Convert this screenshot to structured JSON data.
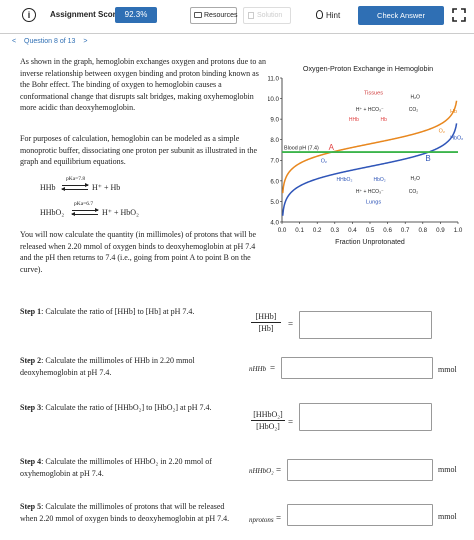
{
  "toolbar": {
    "score_label": "Assignment Score:",
    "score_value": "92.3%",
    "resources_label": "Resources",
    "solution_label": "Solution",
    "hint_label": "Hint",
    "check_label": "Check Answer"
  },
  "nav": {
    "prev": "<",
    "question": "Question 8 of 13",
    "next": ">"
  },
  "problem": {
    "intro": "As shown in the graph, hemoglobin exchanges oxygen and protons due to an inverse relationship between oxygen binding and proton binding known as the Bohr effect. The binding of oxygen to hemoglobin causes a conformational change that disrupts salt bridges, making oxyhemoglobin more acidic than deoxyhemoglobin.",
    "model": "For purposes of calculation, hemoglobin can be modeled as a simple monoprotic buffer, dissociating one proton per subunit as illustrated in the graph and equilibrium equations.",
    "eq1_left": "HHb",
    "eq1_k": "pKa=7.8",
    "eq1_right": "H⁺ + Hb",
    "eq2_left": "HHbO₂",
    "eq2_k": "pKa=6.7",
    "eq2_right": "H⁺ + HbO₂",
    "task": "You will now calculate the quantity (in millimoles) of protons that will be released when 2.20 mmol of oxygen binds to deoxyhemoglobin at pH 7.4 and the pH then returns to 7.4 (i.e., going from point A to point B on the curve)."
  },
  "steps": [
    {
      "label": "Step 1",
      "text": ": Calculate the ratio of [HHb] to [Hb] at pH 7.4.",
      "num": "[HHb]",
      "den": "[Hb]",
      "value": "",
      "unit": ""
    },
    {
      "label": "Step 2",
      "text": ": Calculate the millimoles of HHb in 2.20 mmol deoxyhemoglobin at pH 7.4.",
      "var": "nHHb",
      "value": "",
      "unit": "mmol"
    },
    {
      "label": "Step 3",
      "text": ": Calculate the ratio of [HHbO₂] to [HbO₂] at pH 7.4.",
      "num": "[HHbO₂]",
      "den": "[HbO₂]",
      "value": "",
      "unit": ""
    },
    {
      "label": "Step 4",
      "text": ": Calculate the millimoles of HHbO₂ in 2.20 mmol of oxyhemoglobin at pH 7.4.",
      "var": "nHHbO₂",
      "value": "",
      "unit": "mmol"
    },
    {
      "label": "Step 5",
      "text": ": Calculate the millimoles of protons that will be released when 2.20 mmol of oxygen binds to deoxyhemoglobin at pH 7.4.",
      "var": "nprotons",
      "value": "",
      "unit": "mmol"
    }
  ],
  "chart_data": {
    "type": "line",
    "title": "Oxygen-Proton Exchange in Hemoglobin",
    "xlabel": "Fraction Unprotonated",
    "ylabel": "pH",
    "xlim": [
      0.0,
      1.0
    ],
    "ylim": [
      4.0,
      11.0
    ],
    "x_ticks": [
      "0.0",
      "0.1",
      "0.2",
      "0.3",
      "0.4",
      "0.5",
      "0.6",
      "0.7",
      "0.8",
      "0.9",
      "1.0"
    ],
    "y_ticks": [
      "4.0",
      "5.0",
      "6.0",
      "7.0",
      "8.0",
      "9.0",
      "10.0",
      "11.0"
    ],
    "series": [
      {
        "name": "HHb / Hb",
        "color": "#e8871e",
        "pKa": 7.8
      },
      {
        "name": "HHbO₂ / HbO₂",
        "color": "#2f55b8",
        "pKa": 6.7
      }
    ],
    "blood_line": {
      "label": "Blood pH (7.4)",
      "y": 7.4,
      "color": "#3cb44b"
    },
    "points": [
      {
        "label": "A",
        "x": 0.28,
        "y": 7.4,
        "color": "#e04040"
      },
      {
        "label": "B",
        "x": 0.83,
        "y": 7.4,
        "color": "#2f55b8"
      }
    ],
    "annotations": {
      "tissues": "Tissues",
      "lungs": "Lungs",
      "o2": "O₂",
      "h2o": "H₂O",
      "hco3": "H⁺ + HCO₃⁻",
      "co2": "CO₂",
      "hhb": "HHb",
      "hb": "Hb",
      "hhbo2": "HHbO₂",
      "hbo2": "HbO₂"
    }
  }
}
